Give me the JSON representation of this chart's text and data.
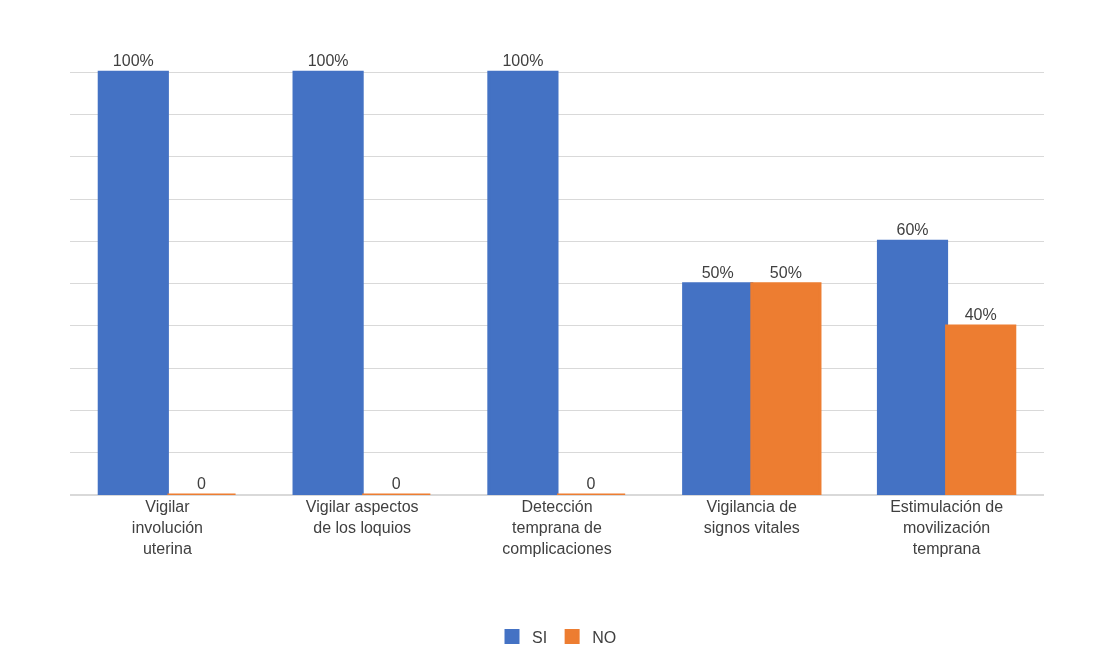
{
  "chart_data": {
    "type": "bar",
    "categories": [
      "Vigilar involución uterina",
      "Vigilar aspectos de los loquios",
      "Detección temprana de complicaciones",
      "Vigilancia de signos vitales",
      "Estimulación de movilización temprana"
    ],
    "series": [
      {
        "name": "SI",
        "color": "#4472c4",
        "values": [
          100,
          100,
          100,
          50,
          60
        ],
        "value_labels": [
          "100%",
          "100%",
          "100%",
          "50%",
          "60%"
        ]
      },
      {
        "name": "NO",
        "color": "#ed7d31",
        "values": [
          0,
          0,
          0,
          50,
          40
        ],
        "value_labels": [
          "0",
          "0",
          "0",
          "50%",
          "40%"
        ]
      }
    ],
    "data_labels": true,
    "tick_labels": "x",
    "grid": "y",
    "legend": "bottom"
  }
}
